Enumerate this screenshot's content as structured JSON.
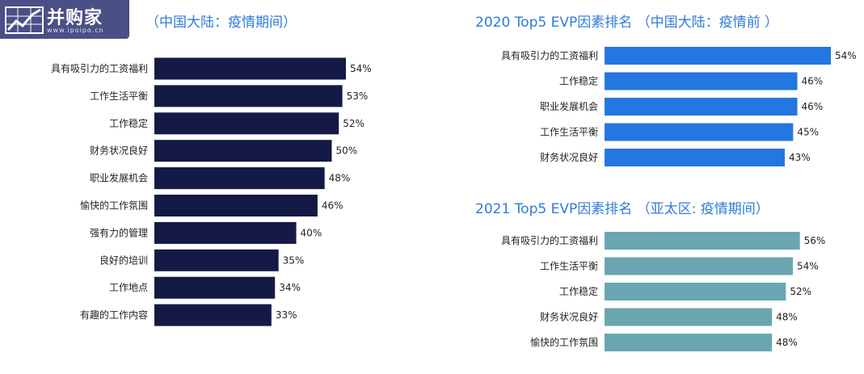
{
  "logo": {
    "brand": "并购家",
    "url": "www.ipoipo.cn",
    "icon": "growth-chart-icon"
  },
  "colors": {
    "title": "#2f7bd9",
    "left_bar": "#141a45",
    "top_right_bar": "#2476e0",
    "bottom_right_bar": "#6aa6b0"
  },
  "chart_data": [
    {
      "type": "bar",
      "orientation": "horizontal",
      "title": "（中国大陆：疫情期间）",
      "categories": [
        "具有吸引力的工资福利",
        "工作生活平衡",
        "工作稳定",
        "财务状况良好",
        "职业发展机会",
        "愉快的工作氛围",
        "强有力的管理",
        "良好的培训",
        "工作地点",
        "有趣的工作内容"
      ],
      "values": [
        54,
        53,
        52,
        50,
        48,
        46,
        40,
        35,
        34,
        33
      ],
      "value_labels": [
        "54%",
        "53%",
        "52%",
        "50%",
        "48%",
        "46%",
        "40%",
        "35%",
        "34%",
        "33%"
      ],
      "xlim": [
        0,
        54
      ]
    },
    {
      "type": "bar",
      "orientation": "horizontal",
      "title": "2020 Top5 EVP因素排名 （中国大陆：疫情前 ）",
      "categories": [
        "具有吸引力的工资福利",
        "工作稳定",
        "职业发展机会",
        "工作生活平衡",
        "财务状况良好"
      ],
      "values": [
        54,
        46,
        46,
        45,
        43
      ],
      "value_labels": [
        "54%",
        "46%",
        "46%",
        "45%",
        "43%"
      ],
      "xlim": [
        0,
        54
      ]
    },
    {
      "type": "bar",
      "orientation": "horizontal",
      "title": "2021 Top5 EVP因素排名 （亚太区: 疫情期间）",
      "categories": [
        "具有吸引力的工资福利",
        "工作生活平衡",
        "工作稳定",
        "财务状况良好",
        "愉快的工作氛围"
      ],
      "values": [
        56,
        54,
        52,
        48,
        48
      ],
      "value_labels": [
        "56%",
        "54%",
        "52%",
        "48%",
        "48%"
      ],
      "xlim": [
        0,
        54
      ]
    }
  ]
}
